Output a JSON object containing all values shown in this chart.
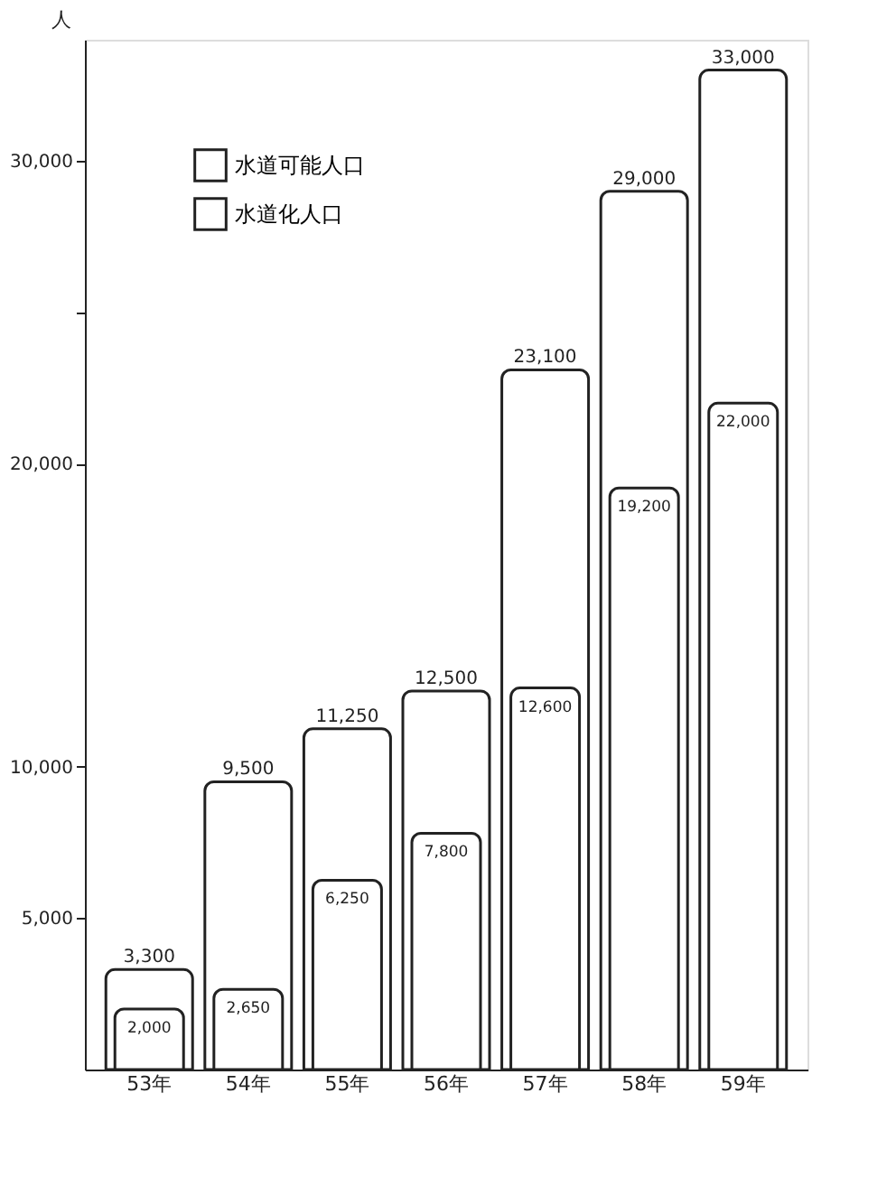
{
  "chart_data": {
    "type": "bar",
    "categories": [
      "53年",
      "54年",
      "55年",
      "56年",
      "57年",
      "58年",
      "59年"
    ],
    "series": [
      {
        "name": "水道可能人口",
        "color": "#ffffff",
        "values": [
          3300,
          9500,
          11250,
          12500,
          23100,
          29000,
          33000
        ],
        "value_labels": [
          "3,300",
          "9,500",
          "11,250",
          "12,500",
          "23,100",
          "29,000",
          "33,000"
        ]
      },
      {
        "name": "水道化人口",
        "color": "#ffffff",
        "values": [
          2000,
          2650,
          6250,
          7800,
          12600,
          19200,
          22000
        ],
        "value_labels": [
          "2,000",
          "2,650",
          "6,250",
          "7,800",
          "12,600",
          "19,200",
          "22,000"
        ]
      }
    ],
    "ylabel": "人",
    "ylim": [
      0,
      34000
    ],
    "yticks": [
      {
        "value": 5000,
        "label": "5,000"
      },
      {
        "value": 10000,
        "label": "10,000"
      },
      {
        "value": 20000,
        "label": "20,000"
      },
      {
        "value": 25000,
        "label": null
      },
      {
        "value": 30000,
        "label": "30,000"
      }
    ],
    "grid": false,
    "legend": "top left"
  }
}
